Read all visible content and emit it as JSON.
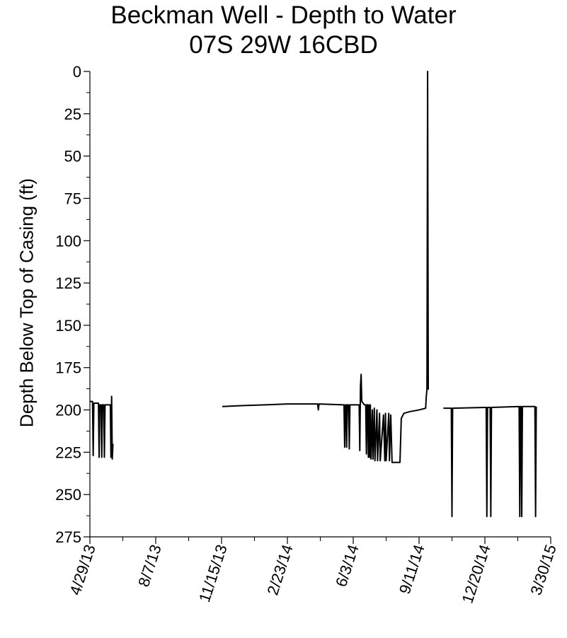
{
  "chart_data": {
    "type": "line",
    "title": "Beckman Well - Depth to Water",
    "subtitle": "07S 29W 16CBD",
    "ylabel": "Depth Below Top of Casing (ft)",
    "xlabel": "",
    "y_reversed": true,
    "ylim": [
      0,
      275
    ],
    "y_major_ticks": [
      0,
      25,
      50,
      75,
      100,
      125,
      150,
      175,
      200,
      225,
      250,
      275
    ],
    "x_ticks": [
      "4/29/13",
      "8/7/13",
      "11/15/13",
      "2/23/14",
      "6/3/14",
      "9/11/14",
      "12/20/14",
      "3/30/15"
    ],
    "xlim": [
      "2013-04-29",
      "2015-03-30"
    ],
    "grid": false,
    "legend": "none",
    "line_color": "#000000",
    "series": [
      {
        "points": [
          [
            "2013-04-29",
            195
          ],
          [
            "2013-05-03",
            195
          ],
          [
            "2013-05-04",
            227
          ],
          [
            "2013-05-05",
            196
          ],
          [
            "2013-05-12",
            196
          ],
          [
            "2013-05-13",
            228
          ],
          [
            "2013-05-14",
            197
          ],
          [
            "2013-05-16",
            197
          ],
          [
            "2013-05-17",
            228
          ],
          [
            "2013-05-18",
            197
          ],
          [
            "2013-05-20",
            197
          ],
          [
            "2013-05-21",
            228
          ],
          [
            "2013-05-22",
            197
          ],
          [
            "2013-05-30",
            197
          ],
          [
            "2013-05-31",
            228
          ],
          [
            "2013-06-01",
            192
          ],
          [
            "2013-06-02",
            229
          ],
          [
            "2013-06-03",
            220
          ]
        ]
      },
      {
        "points": [
          [
            "2013-11-16",
            198
          ],
          [
            "2013-12-15",
            197.5
          ],
          [
            "2014-01-20",
            197
          ],
          [
            "2014-02-23",
            196.5
          ],
          [
            "2014-04-10",
            196.5
          ],
          [
            "2014-04-11",
            200
          ],
          [
            "2014-04-12",
            196.5
          ],
          [
            "2014-05-20",
            197
          ],
          [
            "2014-05-21",
            222
          ],
          [
            "2014-05-22",
            197
          ],
          [
            "2014-05-23",
            197
          ],
          [
            "2014-05-24",
            222
          ],
          [
            "2014-05-25",
            197
          ],
          [
            "2014-05-27",
            197
          ],
          [
            "2014-05-28",
            223
          ],
          [
            "2014-05-29",
            197
          ],
          [
            "2014-06-12",
            197
          ],
          [
            "2014-06-13",
            224
          ],
          [
            "2014-06-14",
            186
          ],
          [
            "2014-06-15",
            179
          ],
          [
            "2014-06-16",
            195
          ],
          [
            "2014-06-20",
            197
          ],
          [
            "2014-06-22",
            197
          ],
          [
            "2014-06-23",
            226
          ],
          [
            "2014-06-24",
            197
          ],
          [
            "2014-06-25",
            197
          ],
          [
            "2014-06-26",
            228
          ],
          [
            "2014-06-27",
            197
          ],
          [
            "2014-06-28",
            228
          ],
          [
            "2014-06-29",
            197
          ],
          [
            "2014-06-30",
            229
          ],
          [
            "2014-07-02",
            200
          ],
          [
            "2014-07-03",
            229
          ],
          [
            "2014-07-05",
            199
          ],
          [
            "2014-07-06",
            230
          ],
          [
            "2014-07-09",
            200
          ],
          [
            "2014-07-10",
            230
          ],
          [
            "2014-07-13",
            202
          ],
          [
            "2014-07-14",
            230
          ],
          [
            "2014-07-19",
            203
          ],
          [
            "2014-07-21",
            230
          ],
          [
            "2014-07-22",
            202
          ],
          [
            "2014-07-23",
            230
          ],
          [
            "2014-07-27",
            202
          ],
          [
            "2014-07-28",
            230
          ],
          [
            "2014-07-30",
            203
          ],
          [
            "2014-08-01",
            231
          ],
          [
            "2014-08-05",
            231
          ],
          [
            "2014-08-07",
            231
          ],
          [
            "2014-08-11",
            231
          ],
          [
            "2014-08-13",
            231
          ],
          [
            "2014-08-15",
            205
          ],
          [
            "2014-08-19",
            202
          ],
          [
            "2014-08-28",
            201
          ],
          [
            "2014-09-11",
            200
          ],
          [
            "2014-09-21",
            199
          ],
          [
            "2014-09-22",
            192
          ],
          [
            "2014-09-23",
            188
          ],
          [
            "2014-09-24",
            0
          ],
          [
            "2014-09-25",
            188
          ]
        ]
      },
      {
        "points": [
          [
            "2014-10-18",
            199
          ],
          [
            "2014-10-30",
            199
          ],
          [
            "2014-10-31",
            263
          ],
          [
            "2014-11-01",
            199
          ],
          [
            "2014-12-22",
            198.5
          ],
          [
            "2014-12-23",
            263
          ],
          [
            "2014-12-24",
            198.5
          ],
          [
            "2014-12-28",
            198.5
          ],
          [
            "2014-12-29",
            263
          ],
          [
            "2014-12-30",
            198.5
          ],
          [
            "2015-02-10",
            198
          ],
          [
            "2015-02-11",
            263
          ],
          [
            "2015-02-12",
            198
          ],
          [
            "2015-02-13",
            198
          ],
          [
            "2015-02-14",
            263
          ],
          [
            "2015-02-15",
            198
          ],
          [
            "2015-03-06",
            198
          ],
          [
            "2015-03-07",
            263
          ],
          [
            "2015-03-08",
            198
          ]
        ]
      }
    ]
  }
}
